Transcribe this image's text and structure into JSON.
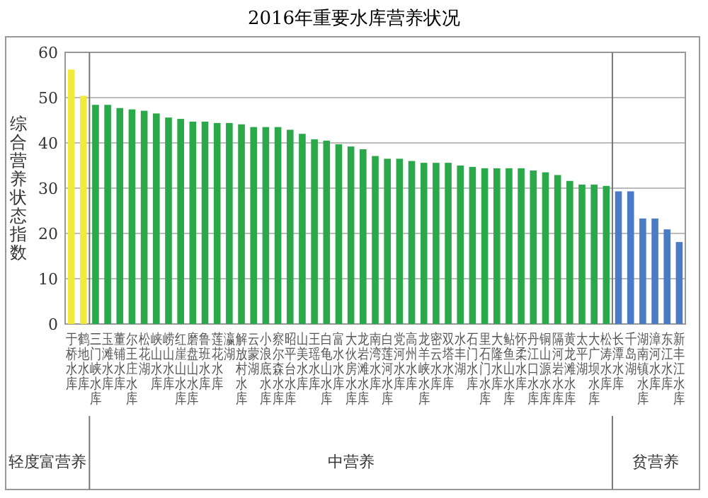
{
  "chart_data": {
    "type": "bar",
    "title": "2016年重要水库营养状况",
    "ylabel": "综合营养状态指数",
    "categories": [
      "于桥水库",
      "鹤地水库",
      "三门峡水库",
      "玉滩水库",
      "董铺水库",
      "尔王庄水库",
      "松花湖",
      "峡山水库",
      "崂山水库",
      "红崖山水库",
      "磨盘山水库",
      "鲁班水库",
      "莲花水库",
      "瀛湖",
      "解放村水库",
      "云蒙湖",
      "小浪底水库",
      "察尔森水库",
      "昭平台水库",
      "山美水库",
      "王瑶水库",
      "白龟山水库",
      "富水水库",
      "大伙房水库",
      "龙岩滩水库",
      "南湾水库",
      "白莲河水库",
      "党河水库",
      "高州水库",
      "龙羊峡水库",
      "密云水库",
      "双塔水库",
      "水丰湖",
      "石门水库",
      "里石门水库",
      "大隆水库",
      "鲇鱼山水库",
      "怀柔水库",
      "丹江口水库",
      "铜山源水库",
      "隔河岩水库",
      "黄龙滩水库",
      "太平湖",
      "大广坝水库",
      "松涛水库",
      "长潭水库",
      "千岛湖",
      "湖南镇水库",
      "漳河水库",
      "东江水库",
      "新丰江水库"
    ],
    "values": [
      56.2,
      50.4,
      48.4,
      48.4,
      47.7,
      47.4,
      47.1,
      46.5,
      45.6,
      45.3,
      44.7,
      44.7,
      44.4,
      44.4,
      44.1,
      43.5,
      43.5,
      43.5,
      42.9,
      42.0,
      40.8,
      40.5,
      39.7,
      39.2,
      38.6,
      37.1,
      36.5,
      36.5,
      36.0,
      35.6,
      35.6,
      35.6,
      35.0,
      34.7,
      34.4,
      34.4,
      34.4,
      34.4,
      33.9,
      33.5,
      32.9,
      31.6,
      30.8,
      30.8,
      30.5,
      29.3,
      29.3,
      23.3,
      23.3,
      20.9,
      18.1
    ],
    "colors": [
      "#f0ea3c",
      "#f0ea3c",
      "#2ba84a",
      "#2ba84a",
      "#2ba84a",
      "#2ba84a",
      "#2ba84a",
      "#2ba84a",
      "#2ba84a",
      "#2ba84a",
      "#2ba84a",
      "#2ba84a",
      "#2ba84a",
      "#2ba84a",
      "#2ba84a",
      "#2ba84a",
      "#2ba84a",
      "#2ba84a",
      "#2ba84a",
      "#2ba84a",
      "#2ba84a",
      "#2ba84a",
      "#2ba84a",
      "#2ba84a",
      "#2ba84a",
      "#2ba84a",
      "#2ba84a",
      "#2ba84a",
      "#2ba84a",
      "#2ba84a",
      "#2ba84a",
      "#2ba84a",
      "#2ba84a",
      "#2ba84a",
      "#2ba84a",
      "#2ba84a",
      "#2ba84a",
      "#2ba84a",
      "#2ba84a",
      "#2ba84a",
      "#2ba84a",
      "#2ba84a",
      "#2ba84a",
      "#2ba84a",
      "#2ba84a",
      "#4a7bc4",
      "#4a7bc4",
      "#4a7bc4",
      "#4a7bc4",
      "#4a7bc4",
      "#4a7bc4"
    ],
    "ylim": [
      0,
      60
    ],
    "yticks": [
      0,
      10,
      20,
      30,
      40,
      50,
      60
    ],
    "grid": "y",
    "annotations": [
      "轻度富营养",
      "中营养",
      "贫营养"
    ]
  }
}
